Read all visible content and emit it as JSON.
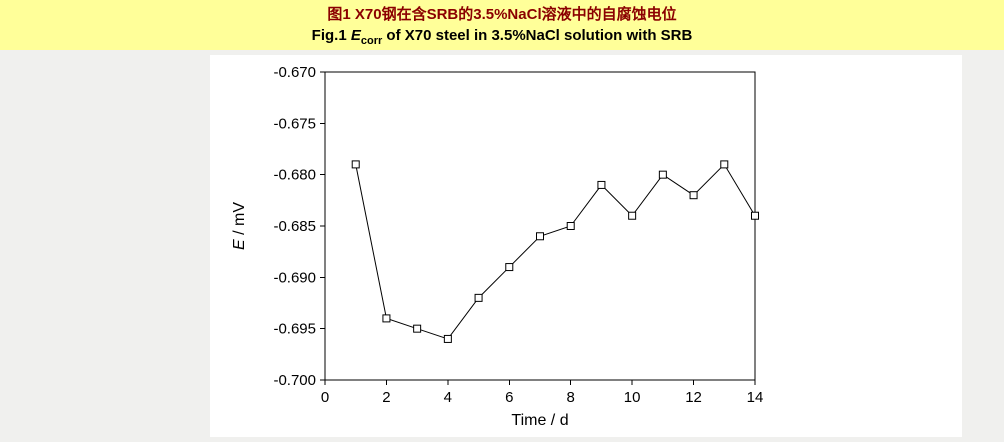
{
  "header": {
    "background": "#ffff99",
    "title_zh": {
      "prefix": "图1",
      "text": " X70钢在含SRB的3.5%NaCl溶液中的自腐蚀电位",
      "color": "#8b0000"
    },
    "title_en": {
      "prefix": "Fig.1 ",
      "e": "E",
      "sub": "corr",
      "rest": " of X70 steel in 3.5%NaCl solution with SRB",
      "color": "#000000"
    }
  },
  "chart_data": {
    "type": "line",
    "title": "Ecorr of X70 steel in 3.5%NaCl solution with SRB",
    "x": [
      1,
      2,
      3,
      4,
      5,
      6,
      7,
      8,
      9,
      10,
      11,
      12,
      13,
      14
    ],
    "values": [
      -0.679,
      -0.694,
      -0.695,
      -0.696,
      -0.692,
      -0.689,
      -0.686,
      -0.685,
      -0.681,
      -0.684,
      -0.68,
      -0.682,
      -0.679,
      -0.684
    ],
    "xlabel": "Time / d",
    "ylabel": "E / mV",
    "ylabel_italic": "E",
    "ylabel_rest": " / mV",
    "xlim": [
      0,
      14
    ],
    "ylim": [
      -0.7,
      -0.67
    ],
    "x_ticks": [
      0,
      2,
      4,
      6,
      8,
      10,
      12,
      14
    ],
    "y_ticks": [
      -0.67,
      -0.675,
      -0.68,
      -0.685,
      -0.69,
      -0.695,
      -0.7
    ],
    "y_tick_decimals": 3,
    "marker": "open-square",
    "marker_size": 7,
    "line_color": "#000000",
    "background": "#ffffff",
    "grid": false,
    "legend": "none"
  }
}
